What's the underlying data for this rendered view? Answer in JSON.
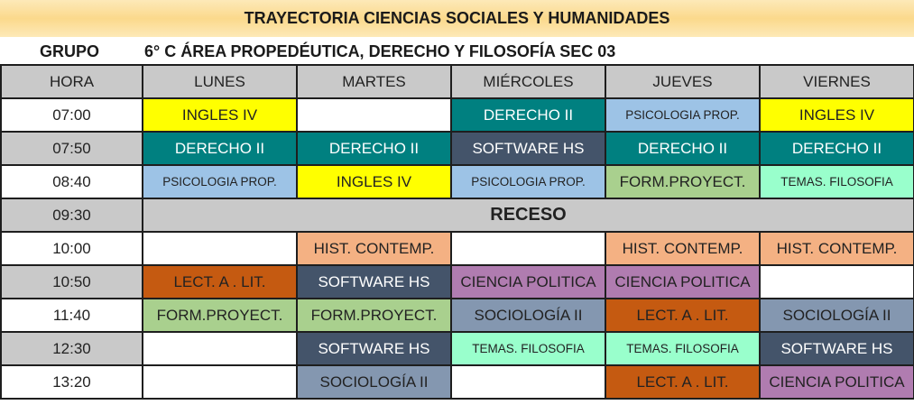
{
  "title": "TRAYECTORIA CIENCIAS SOCIALES Y HUMANIDADES",
  "grupo_label": "GRUPO",
  "grupo_value": "6° C ÁREA PROPEDÉUTICA, DERECHO Y FILOSOFÍA SEC 03",
  "headers": [
    "HORA",
    "LUNES",
    "MARTES",
    "MIÉRCOLES",
    "JUEVES",
    "VIERNES"
  ],
  "subject_colors": {
    "INGLES IV": {
      "bg": "#ffff00",
      "fg": "#222222"
    },
    "DERECHO II": {
      "bg": "#008080",
      "fg": "#ffffff"
    },
    "PSICOLOGIA PROP.": {
      "bg": "#9dc3e6",
      "fg": "#222222"
    },
    "SOFTWARE HS": {
      "bg": "#44546a",
      "fg": "#ffffff"
    },
    "FORM.PROYECT.": {
      "bg": "#a9d08e",
      "fg": "#222222"
    },
    "TEMAS. FILOSOFIA": {
      "bg": "#99ffcc",
      "fg": "#222222"
    },
    "HIST. CONTEMP.": {
      "bg": "#f4b183",
      "fg": "#222222"
    },
    "LECT. A . LIT.": {
      "bg": "#c55a11",
      "fg": "#222222"
    },
    "CIENCIA POLITICA": {
      "bg": "#b07cb0",
      "fg": "#222222"
    },
    "SOCIOLOGÍA II": {
      "bg": "#8497b0",
      "fg": "#222222"
    }
  },
  "rows": [
    {
      "hora": "07:00",
      "cells": [
        "INGLES IV",
        "",
        "DERECHO II",
        "PSICOLOGIA PROP.",
        "INGLES IV"
      ]
    },
    {
      "hora": "07:50",
      "cells": [
        "DERECHO II",
        "DERECHO II",
        "SOFTWARE HS",
        "DERECHO II",
        "DERECHO II"
      ]
    },
    {
      "hora": "08:40",
      "cells": [
        "PSICOLOGIA PROP.",
        "INGLES IV",
        "PSICOLOGIA PROP.",
        "FORM.PROYECT.",
        "TEMAS. FILOSOFIA"
      ]
    },
    {
      "hora": "09:30",
      "receso": "RECESO"
    },
    {
      "hora": "10:00",
      "cells": [
        "",
        "HIST. CONTEMP.",
        "",
        "HIST. CONTEMP.",
        "HIST. CONTEMP."
      ]
    },
    {
      "hora": "10:50",
      "cells": [
        "LECT. A . LIT.",
        "SOFTWARE HS",
        "CIENCIA POLITICA",
        "CIENCIA POLITICA",
        ""
      ]
    },
    {
      "hora": "11:40",
      "cells": [
        "FORM.PROYECT.",
        "FORM.PROYECT.",
        "SOCIOLOGÍA II",
        "LECT. A . LIT.",
        "SOCIOLOGÍA II"
      ]
    },
    {
      "hora": "12:30",
      "cells": [
        "",
        "SOFTWARE HS",
        "TEMAS. FILOSOFIA",
        "TEMAS. FILOSOFIA",
        "SOFTWARE HS"
      ]
    },
    {
      "hora": "13:20",
      "cells": [
        "",
        "SOCIOLOGÍA II",
        "",
        "LECT. A . LIT.",
        "CIENCIA POLITICA"
      ]
    }
  ]
}
